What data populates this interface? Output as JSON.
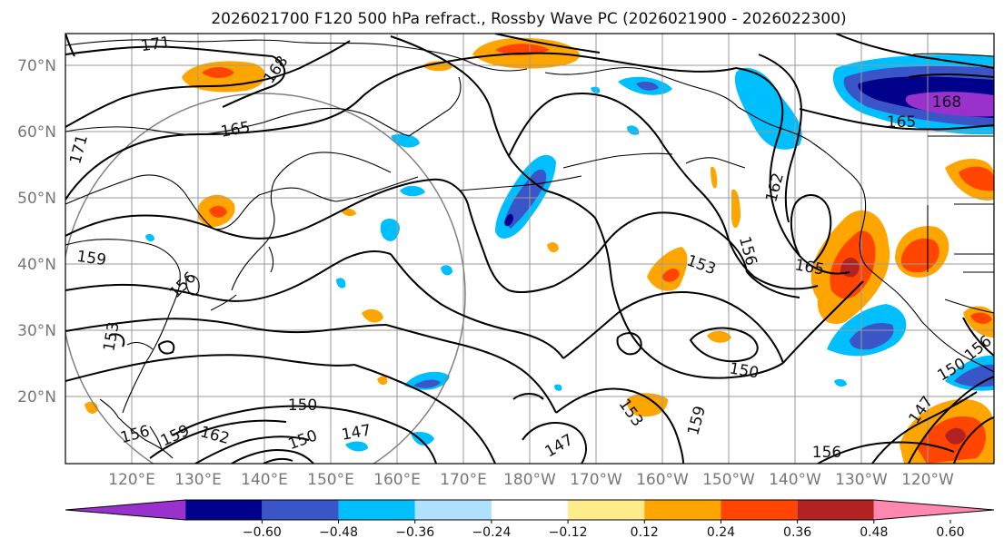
{
  "title": "2026021700 F120 500 hPa refract., Rossby Wave PC (2026021900 - 2026022300)",
  "lat_labels": [
    "70°N",
    "60°N",
    "50°N",
    "40°N",
    "30°N",
    "20°N"
  ],
  "lon_labels": [
    "120°E",
    "130°E",
    "140°E",
    "150°E",
    "160°E",
    "170°E",
    "180°W",
    "170°W",
    "160°W",
    "150°W",
    "140°W",
    "130°W",
    "120°W"
  ],
  "colorbar": {
    "colors": [
      "#9932cc",
      "#00008b",
      "#3a55c8",
      "#00bfff",
      "#b0e2ff",
      "#ffffff",
      "#ffec8b",
      "#ffa500",
      "#ff4500",
      "#b22222",
      "#ff88b0"
    ],
    "tick_labels": [
      "−0.60",
      "−0.48",
      "−0.36",
      "−0.24",
      "−0.12",
      "0.12",
      "0.24",
      "0.36",
      "0.48",
      "0.60"
    ]
  },
  "contour_labels": {
    "l171a": "171",
    "l168a": "168",
    "l165a": "165",
    "l171b": "171",
    "l159a": "159",
    "l156a": "156",
    "l153a": "153",
    "l150a": "150",
    "l147a": "147",
    "l150b": "150",
    "l156b": "156",
    "l159b": "159",
    "l162a": "162",
    "l153b": "153",
    "l147b": "147",
    "l153c": "153",
    "l159c": "159",
    "l150c": "150",
    "l156c": "156",
    "l162b": "162",
    "l165b": "165",
    "l156d": "156",
    "l168b": "168",
    "l165c": "165",
    "l150d": "150",
    "l147c": "147",
    "l156e": "156"
  }
}
